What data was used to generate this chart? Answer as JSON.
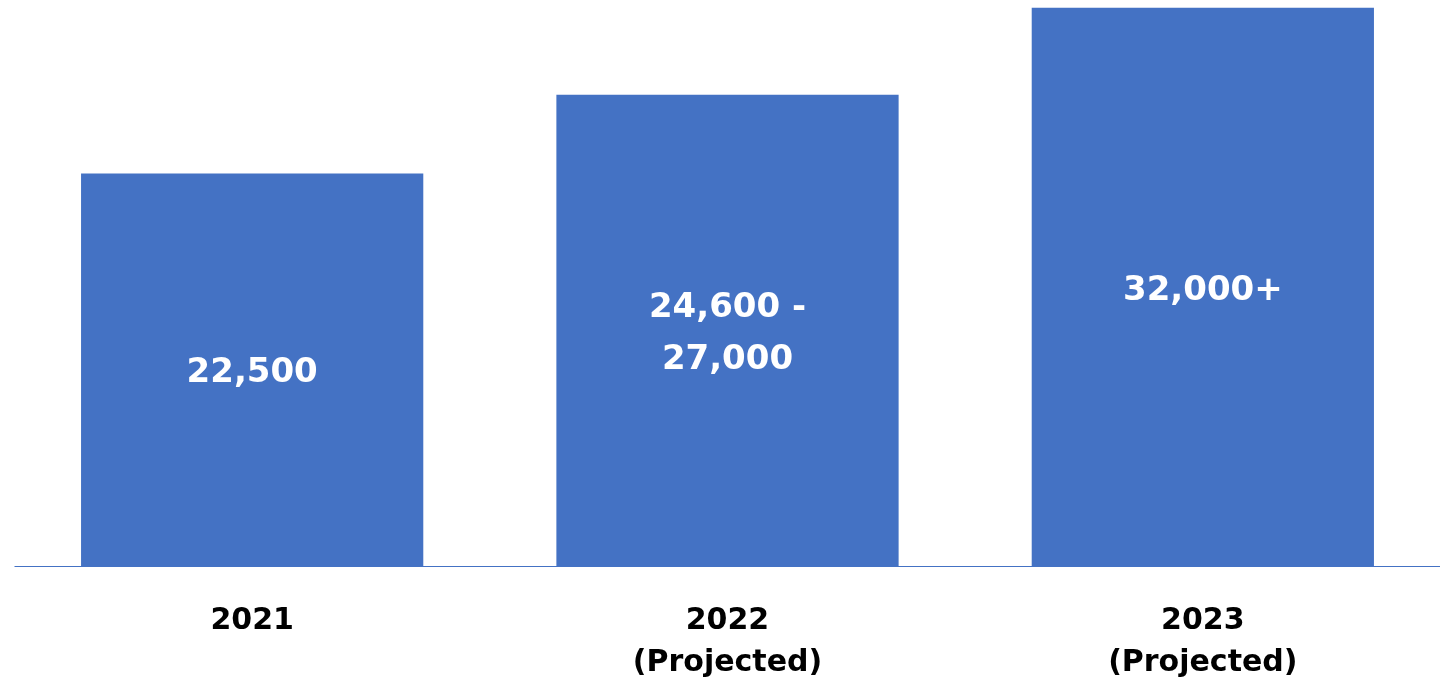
{
  "chart_data": {
    "type": "bar",
    "categories": [
      "2021",
      "2022\n(Projected)",
      "2023\n(Projected)"
    ],
    "values": [
      22500,
      27000,
      32000
    ],
    "value_labels": [
      "22,500",
      "24,600 -\n27,000",
      "32,000+"
    ],
    "color": "#4472c4",
    "grid": false
  }
}
